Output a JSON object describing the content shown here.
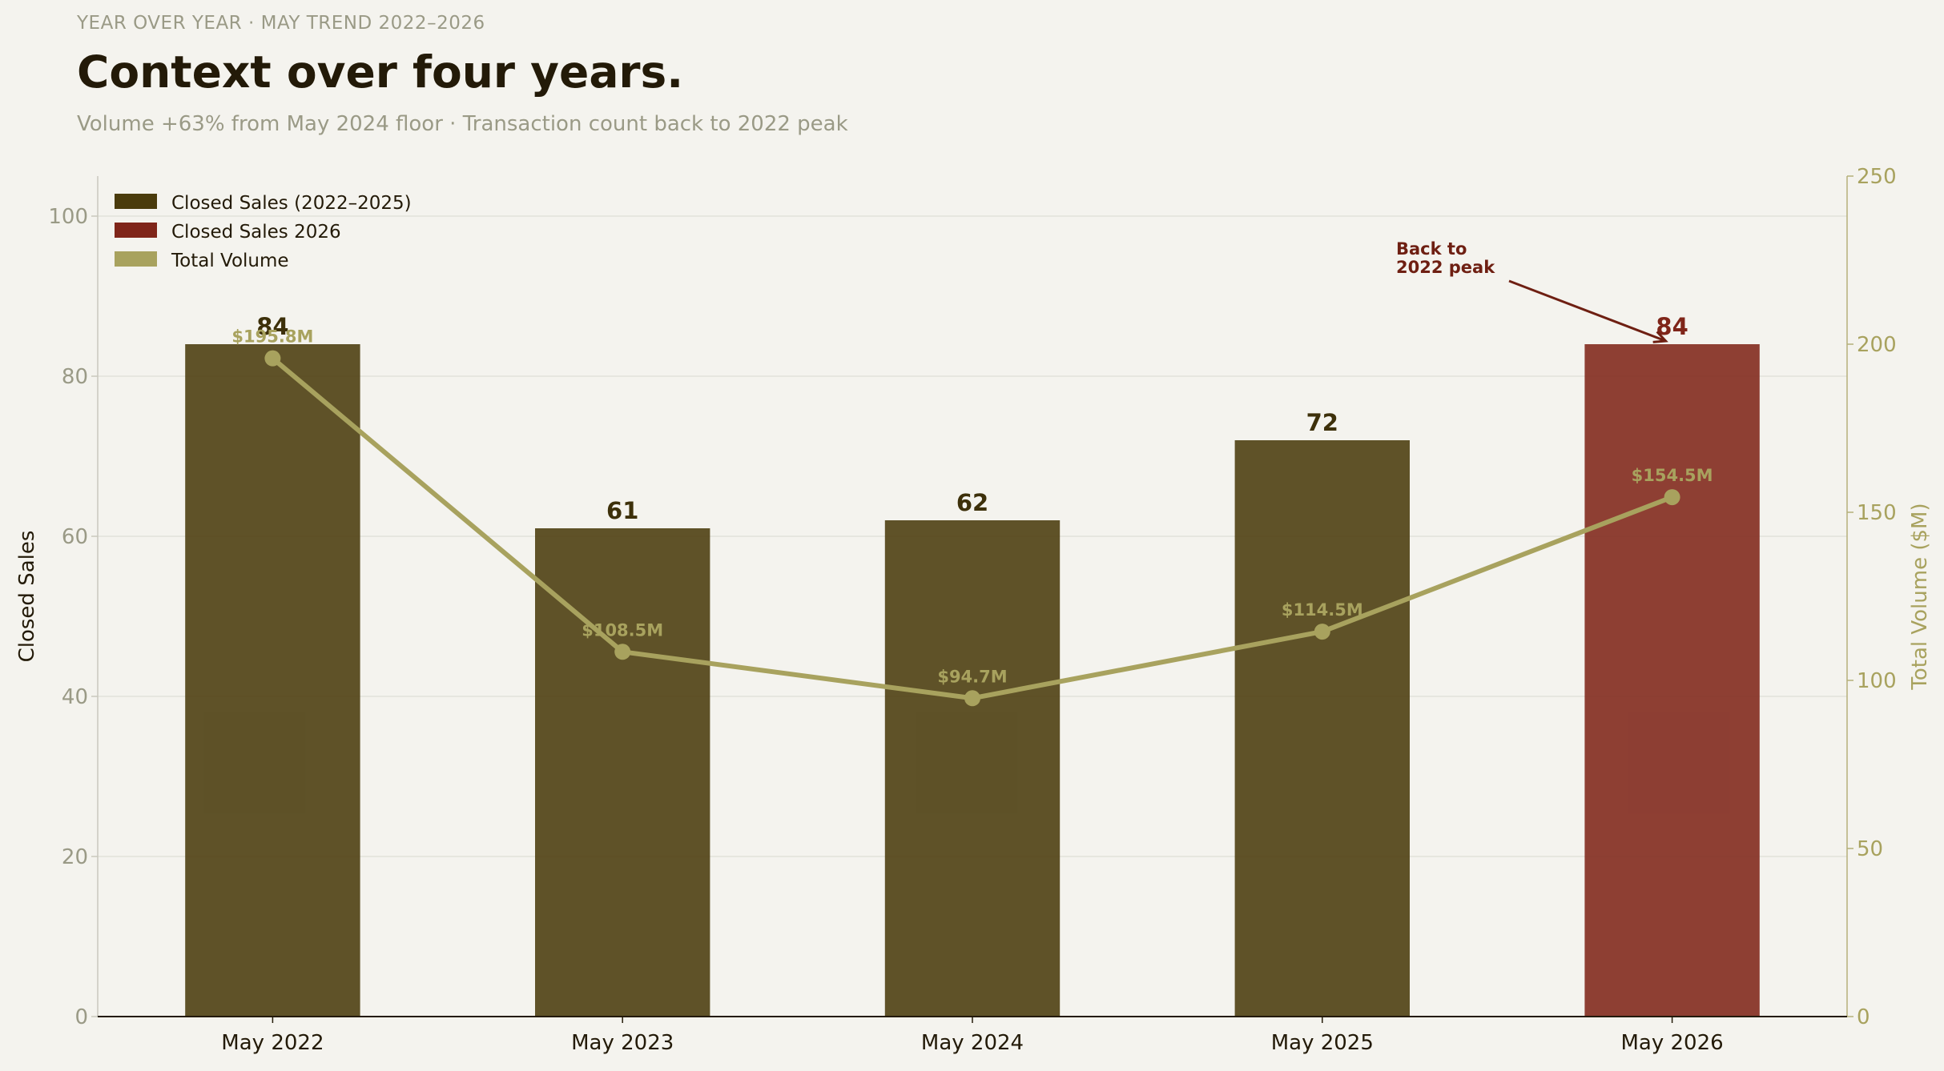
{
  "header": {
    "eyebrow": "YEAR OVER YEAR  ·  MAY TREND 2022–2026",
    "title": "Context over four years.",
    "subtitle": "Volume +63% from May 2024 floor  ·  Transaction count back to 2022 peak"
  },
  "chart_data": {
    "type": "bar",
    "categories": [
      "May 2022",
      "May 2023",
      "May 2024",
      "May 2025",
      "May 2026"
    ],
    "series": [
      {
        "name": "Closed Sales (2022–2025)",
        "axis": "left",
        "values": [
          84,
          61,
          62,
          72,
          null
        ],
        "labels": [
          "84",
          "61",
          "62",
          "72",
          ""
        ],
        "color": "#4a3b0c"
      },
      {
        "name": "Closed Sales 2026",
        "axis": "left",
        "values": [
          null,
          null,
          null,
          null,
          84
        ],
        "labels": [
          "",
          "",
          "",
          "",
          "84"
        ],
        "color": "#7f2519"
      },
      {
        "name": "Total Volume",
        "type": "line",
        "axis": "right",
        "values": [
          195.8,
          108.5,
          94.7,
          114.5,
          154.5
        ],
        "labels": [
          "$195.8M",
          "$108.5M",
          "$94.7M",
          "$114.5M",
          "$154.5M"
        ],
        "color": "#a8a25e"
      }
    ],
    "ylabel": "Closed Sales",
    "ylabel_right": "Total Volume ($M)",
    "ylim": [
      0,
      105
    ],
    "ylim_right": [
      0,
      250
    ],
    "yticks": [
      0,
      20,
      40,
      60,
      80,
      100
    ],
    "yticks_right": [
      0,
      50,
      100,
      150,
      200,
      250
    ],
    "grid": true,
    "legend_position": "top-left",
    "annotation": {
      "category": "May 2026",
      "lines": [
        "Back to",
        "2022 peak"
      ]
    }
  }
}
